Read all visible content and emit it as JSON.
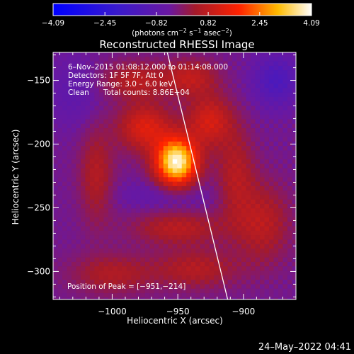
{
  "chart_data": {
    "type": "heatmap",
    "title": "Reconstructed RHESSI Image",
    "xlabel": "Heliocentric X (arcsec)",
    "ylabel": "Heliocentric Y (arcsec)",
    "xlim": [
      -1045,
      -860
    ],
    "ylim": [
      -322,
      -128
    ],
    "x_ticks": [
      -1000,
      -950,
      -900
    ],
    "x_tick_labels": [
      "−1000",
      "−950",
      "−900"
    ],
    "y_ticks": [
      -150,
      -200,
      -250,
      -300
    ],
    "y_tick_labels": [
      "−150",
      "−200",
      "−250",
      "−300"
    ],
    "colorbar": {
      "min": -4.09,
      "max": 4.09,
      "ticks": [
        -4.09,
        -2.45,
        -0.82,
        0.82,
        2.45,
        4.09
      ],
      "tick_labels": [
        "−4.09",
        "−2.45",
        "−0.82",
        "0.82",
        "2.45",
        "4.09"
      ],
      "units_text": "(photons cm",
      "units_exp1": "−2",
      "units_mid1": " s",
      "units_exp2": "−1",
      "units_mid2": " asec",
      "units_exp3": "−2",
      "units_end": ")"
    },
    "annotations": [
      "6–Nov–2015 01:08:12.000 to 01:14:08.000",
      "Detectors: 1F 5F 7F, Att 0",
      "Energy Range: 3.0 – 6.0 keV",
      "Clean      Total counts: 8.86E+04"
    ],
    "peak_label": "Position of Peak = [−951,−214]",
    "peak": {
      "x": -951,
      "y": -214,
      "value": 4.09
    },
    "limb_line": [
      [
        -958,
        -128
      ],
      [
        -912,
        -322
      ]
    ],
    "sources": [
      {
        "x": -951,
        "y": -214,
        "amp": 6.0,
        "sx": 11,
        "sy": 13
      },
      {
        "x": -975,
        "y": -187,
        "amp": 2.2,
        "sx": 14,
        "sy": 13
      },
      {
        "x": -926,
        "y": -182,
        "amp": 2.0,
        "sx": 12,
        "sy": 14
      },
      {
        "x": -982,
        "y": -150,
        "amp": 1.4,
        "sx": 18,
        "sy": 10
      },
      {
        "x": -940,
        "y": -148,
        "amp": 1.5,
        "sx": 14,
        "sy": 10
      },
      {
        "x": -1012,
        "y": -225,
        "amp": 1.3,
        "sx": 9,
        "sy": 26
      },
      {
        "x": -906,
        "y": -225,
        "amp": 1.3,
        "sx": 10,
        "sy": 26
      },
      {
        "x": -885,
        "y": -262,
        "amp": 1.4,
        "sx": 14,
        "sy": 22
      },
      {
        "x": -950,
        "y": -266,
        "amp": 1.4,
        "sx": 24,
        "sy": 9
      },
      {
        "x": -1000,
        "y": -302,
        "amp": 1.2,
        "sx": 22,
        "sy": 11
      },
      {
        "x": -936,
        "y": -298,
        "amp": 1.3,
        "sx": 22,
        "sy": 11
      },
      {
        "x": -1030,
        "y": -160,
        "amp": -0.7,
        "sx": 14,
        "sy": 18
      },
      {
        "x": -875,
        "y": -150,
        "amp": -1.6,
        "sx": 12,
        "sy": 14
      },
      {
        "x": -960,
        "y": -240,
        "amp": -0.6,
        "sx": 26,
        "sy": 8
      }
    ],
    "background": -0.4,
    "timestamp": "24–May–2022 04:41"
  }
}
